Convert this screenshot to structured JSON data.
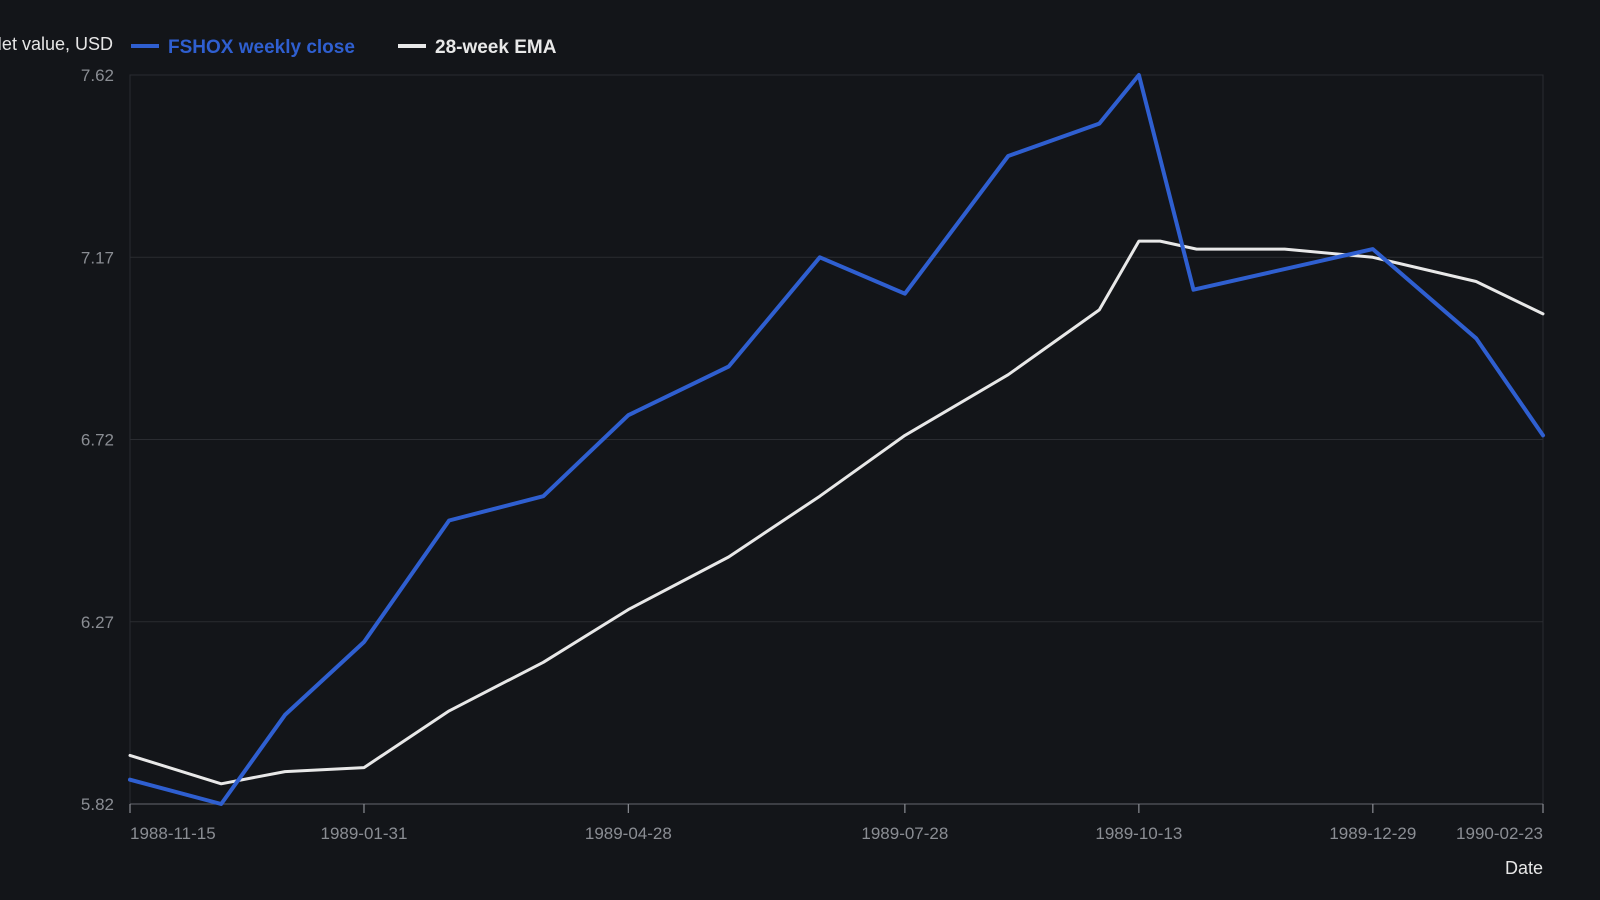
{
  "chart_data": {
    "type": "line",
    "title": "",
    "xlabel": "Date",
    "ylabel": "Net value, USD",
    "ylim": [
      5.82,
      7.62
    ],
    "yticks": [
      "5.82",
      "6.27",
      "6.72",
      "7.17",
      "7.62"
    ],
    "xlim": [
      "1988-11-15",
      "1990-02-23"
    ],
    "xticks": [
      "1988-11-15",
      "1989-01-31",
      "1989-04-28",
      "1989-07-28",
      "1989-10-13",
      "1989-12-29",
      "1990-02-23"
    ],
    "grid": true,
    "legend_position": "top-left",
    "x": [
      "1988-11-15",
      "1988-12-15",
      "1989-01-05",
      "1989-01-31",
      "1989-02-28",
      "1989-03-31",
      "1989-04-28",
      "1989-05-31",
      "1989-06-30",
      "1989-07-28",
      "1989-08-31",
      "1989-09-30",
      "1989-10-13",
      "1989-10-31",
      "1989-12-29",
      "1990-02-01",
      "1990-02-23"
    ],
    "series": [
      {
        "name": "FSHOX weekly close",
        "color": "#2f5fd0",
        "x": [
          "1988-11-15",
          "1988-12-15",
          "1989-01-05",
          "1989-01-31",
          "1989-02-28",
          "1989-03-31",
          "1989-04-28",
          "1989-05-31",
          "1989-06-30",
          "1989-07-28",
          "1989-08-31",
          "1989-09-30",
          "1989-10-13",
          "1989-10-31",
          "1989-12-29",
          "1990-02-01",
          "1990-02-23"
        ],
        "values": [
          5.88,
          5.82,
          6.04,
          6.22,
          6.52,
          6.58,
          6.78,
          6.9,
          7.17,
          7.08,
          7.42,
          7.5,
          7.62,
          7.09,
          7.19,
          6.97,
          6.73
        ]
      },
      {
        "name": "28-week EMA",
        "color": "#e8e8e8",
        "x": [
          "1988-11-15",
          "1988-12-15",
          "1989-01-05",
          "1989-01-31",
          "1989-02-28",
          "1989-03-31",
          "1989-04-28",
          "1989-05-31",
          "1989-06-30",
          "1989-07-28",
          "1989-08-31",
          "1989-09-30",
          "1989-10-13",
          "1989-10-20",
          "1989-11-01",
          "1989-11-30",
          "1989-12-29",
          "1990-02-01",
          "1990-02-23"
        ],
        "values": [
          5.94,
          5.87,
          5.9,
          5.91,
          6.05,
          6.17,
          6.3,
          6.43,
          6.58,
          6.73,
          6.88,
          7.04,
          7.21,
          7.21,
          7.19,
          7.19,
          7.17,
          7.11,
          7.03
        ]
      }
    ]
  }
}
